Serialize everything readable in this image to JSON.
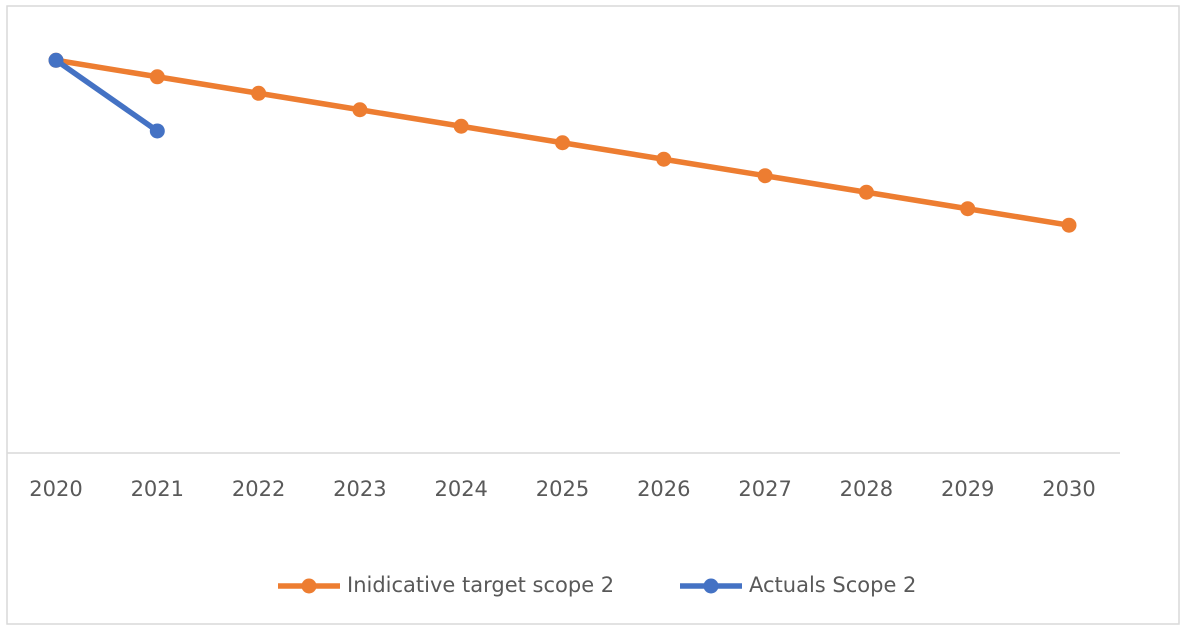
{
  "chart_data": {
    "type": "line",
    "categories": [
      "2020",
      "2021",
      "2022",
      "2023",
      "2024",
      "2025",
      "2026",
      "2027",
      "2028",
      "2029",
      "2030"
    ],
    "series": [
      {
        "name": "Inidicative target scope 2",
        "color": "#ED7D31",
        "values": [
          100,
          95.8,
          91.6,
          87.4,
          83.2,
          79,
          74.8,
          70.6,
          66.4,
          62.2,
          58
        ]
      },
      {
        "name": "Actuals Scope 2",
        "color": "#4472C4",
        "values": [
          100,
          82,
          null,
          null,
          null,
          null,
          null,
          null,
          null,
          null,
          null
        ]
      }
    ],
    "ylim": [
      0,
      110
    ],
    "grid": false,
    "legend": "bottom"
  }
}
